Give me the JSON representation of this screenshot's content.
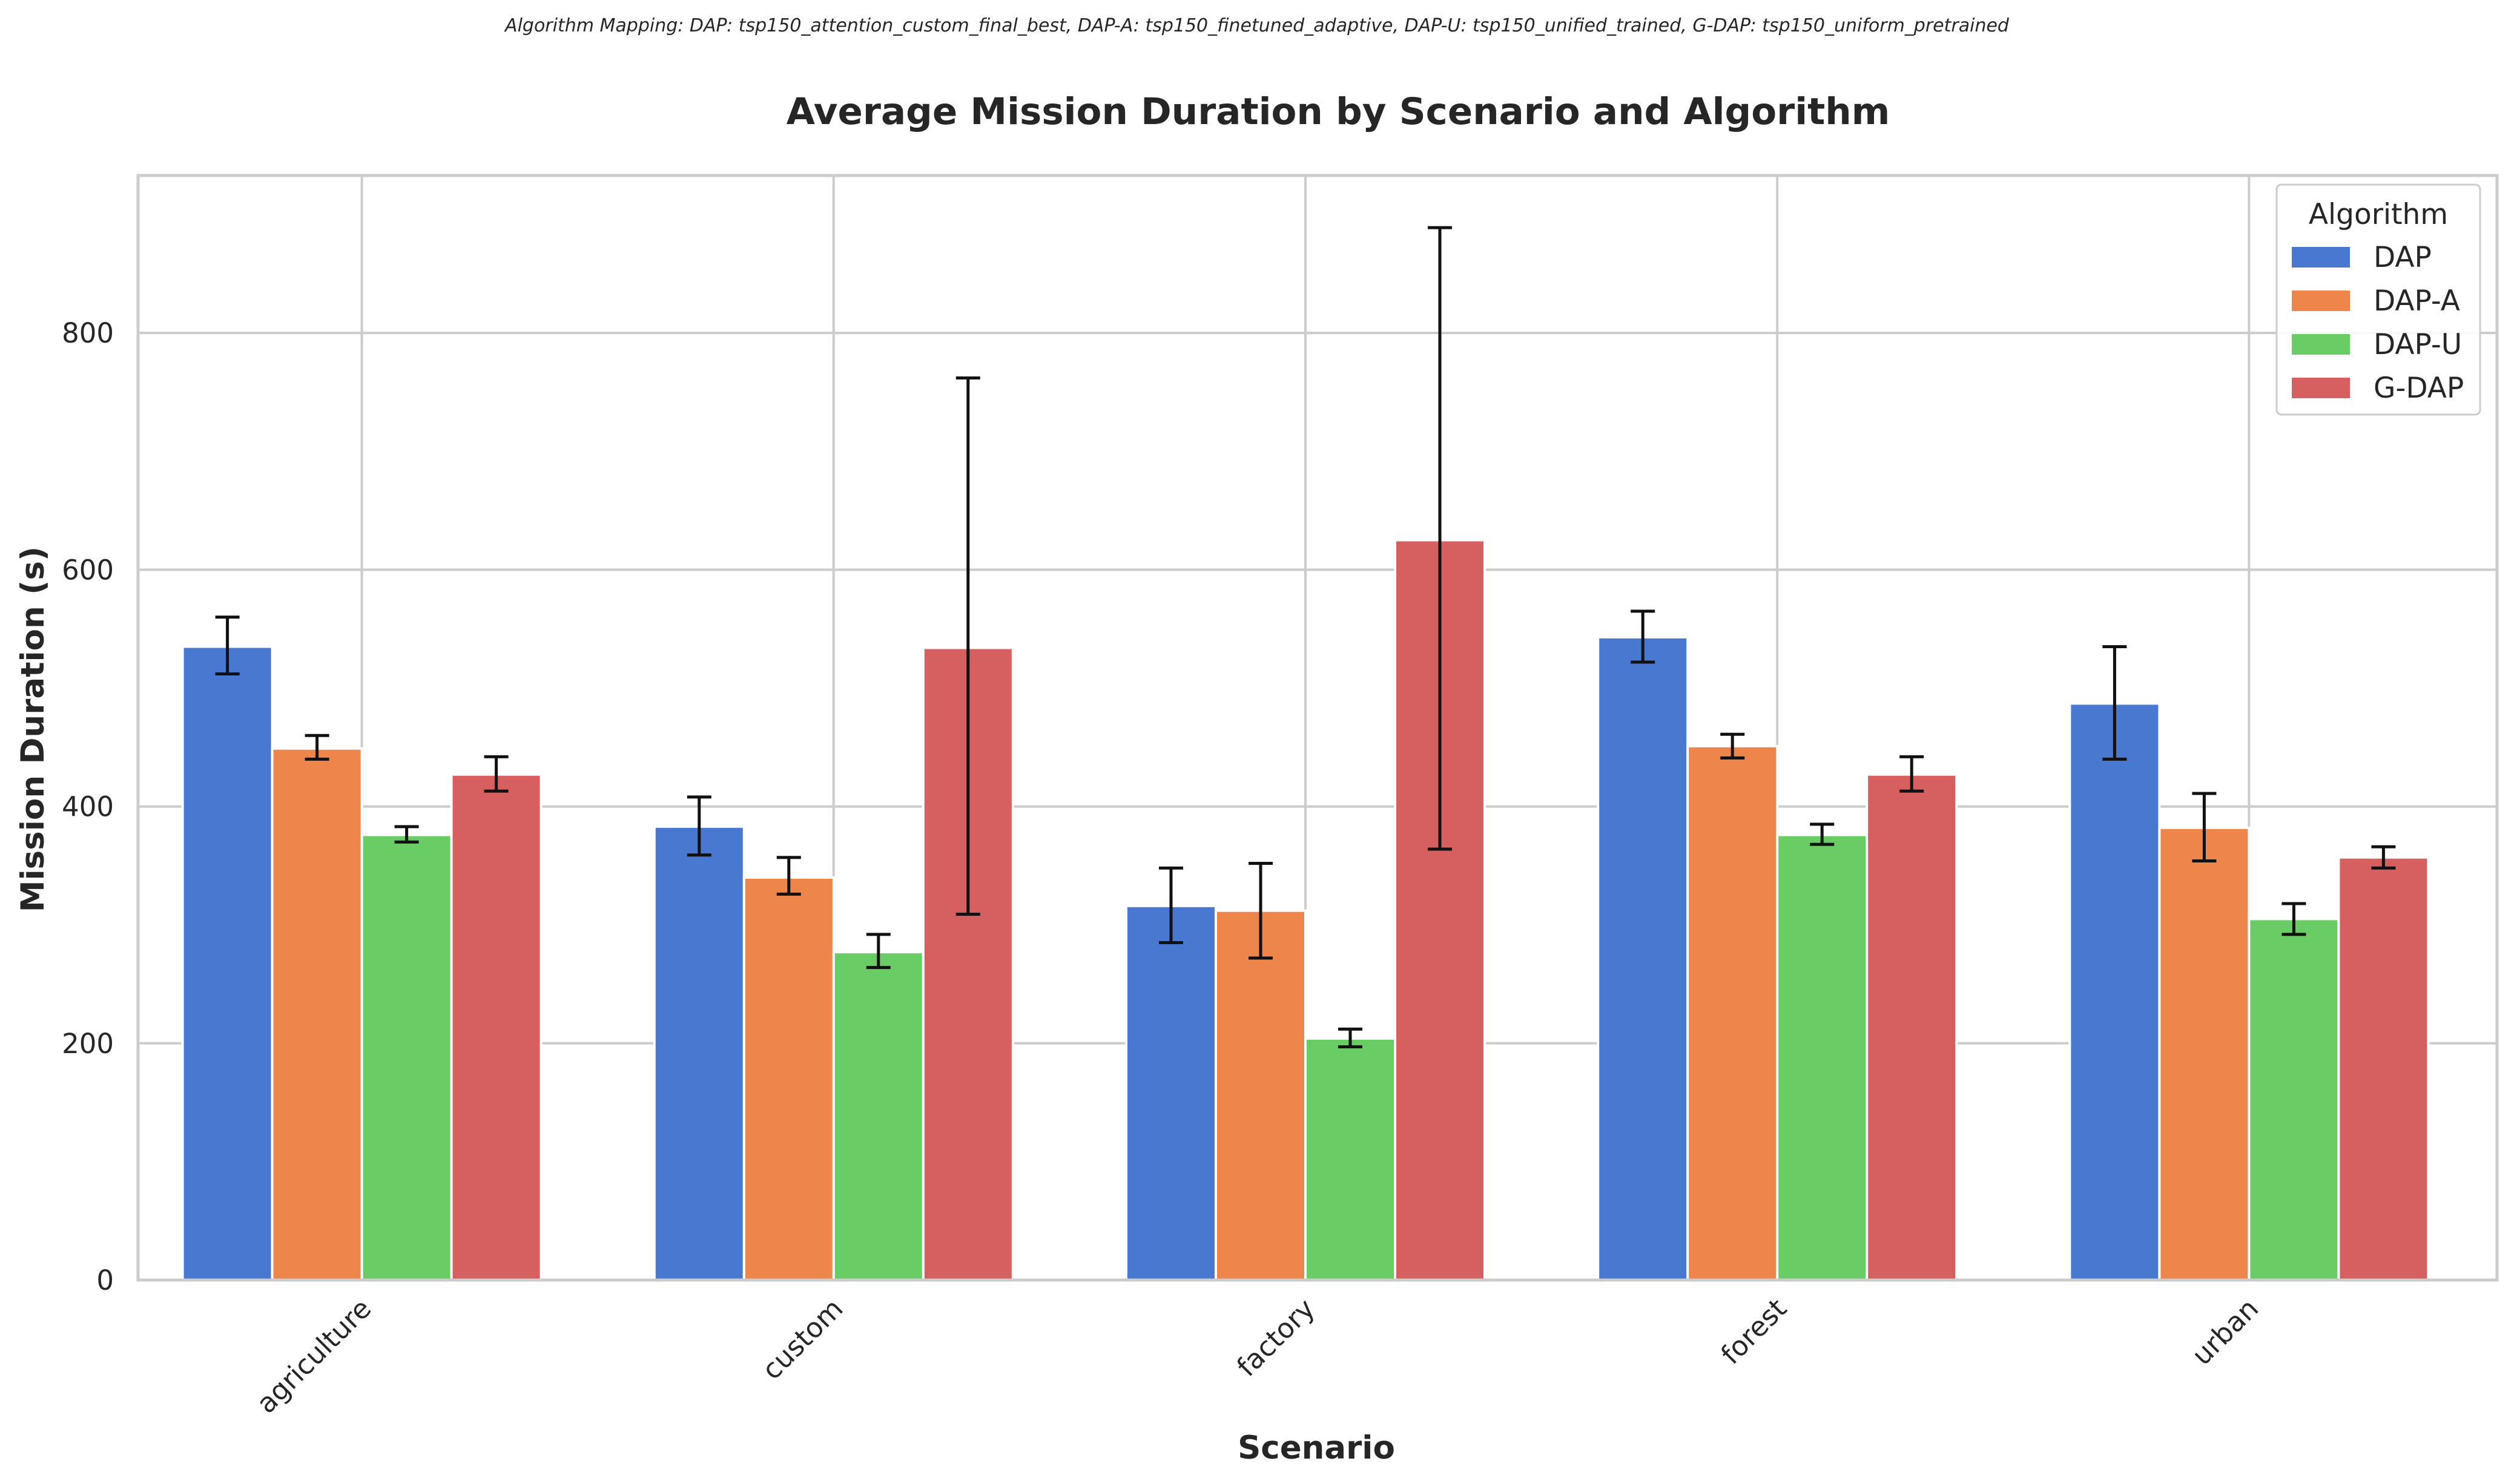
{
  "chart_data": {
    "type": "bar",
    "note": "Algorithm Mapping: DAP: tsp150_attention_custom_final_best, DAP-A: tsp150_finetuned_adaptive, DAP-U: tsp150_unified_trained, G-DAP: tsp150_uniform_pretrained",
    "title": "Average Mission Duration by Scenario and Algorithm",
    "xlabel": "Scenario",
    "ylabel": "Mission Duration (s)",
    "ylim": [
      0,
      933
    ],
    "yticks": [
      "0",
      "200",
      "400",
      "600",
      "800"
    ],
    "grid": true,
    "legend": {
      "title": "Algorithm",
      "position": "top-right"
    },
    "categories": [
      "agriculture",
      "custom",
      "factory",
      "forest",
      "urban"
    ],
    "series": [
      {
        "name": "DAP",
        "color": "#4878d0",
        "values": [
          535,
          383,
          316,
          543,
          487
        ],
        "error_low": [
          512,
          359,
          285,
          522,
          440
        ],
        "error_high": [
          560,
          408,
          348,
          565,
          535
        ]
      },
      {
        "name": "DAP-A",
        "color": "#ee854a",
        "values": [
          449,
          340,
          312,
          451,
          382
        ],
        "error_low": [
          440,
          326,
          272,
          441,
          354
        ],
        "error_high": [
          460,
          357,
          352,
          461,
          411
        ]
      },
      {
        "name": "DAP-U",
        "color": "#6acc64",
        "values": [
          376,
          277,
          204,
          376,
          305
        ],
        "error_low": [
          370,
          264,
          197,
          368,
          292
        ],
        "error_high": [
          383,
          292,
          212,
          385,
          318
        ]
      },
      {
        "name": "G-DAP",
        "color": "#d65f5f",
        "values": [
          427,
          534,
          625,
          427,
          357
        ],
        "error_low": [
          413,
          309,
          364,
          413,
          348
        ],
        "error_high": [
          442,
          762,
          889,
          442,
          366
        ]
      }
    ]
  }
}
